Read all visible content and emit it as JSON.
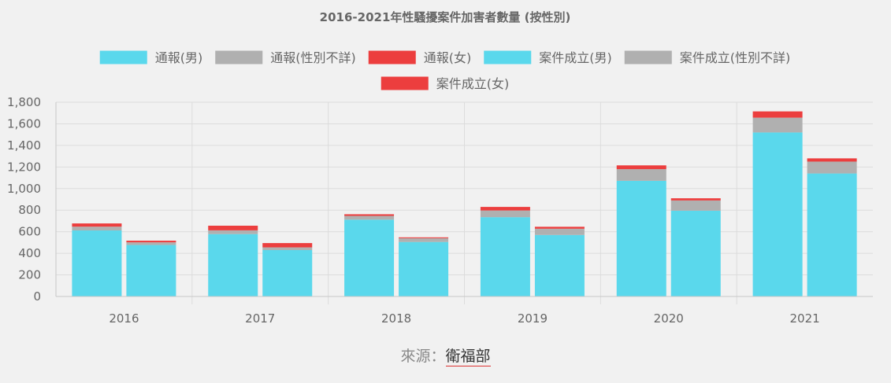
{
  "chart_data": {
    "type": "bar",
    "stacked": true,
    "title": "2016-2021年性騷擾案件加害者數量 (按性別)",
    "categories": [
      "2016",
      "2017",
      "2018",
      "2019",
      "2020",
      "2021"
    ],
    "stacks": [
      "通報",
      "案件成立"
    ],
    "series": [
      {
        "name": "通報(男)",
        "stack": "通報",
        "color": "#5ad8ec",
        "values": [
          612,
          578,
          712,
          735,
          1072,
          1520
        ]
      },
      {
        "name": "通報(性別不詳)",
        "stack": "通報",
        "color": "#b0b0b0",
        "values": [
          35,
          35,
          35,
          62,
          108,
          137
        ]
      },
      {
        "name": "通報(女)",
        "stack": "通報",
        "color": "#ec3e3e",
        "values": [
          30,
          43,
          15,
          33,
          35,
          58
        ]
      },
      {
        "name": "案件成立(男)",
        "stack": "案件成立",
        "color": "#5ad8ec",
        "values": [
          477,
          430,
          505,
          570,
          795,
          1140
        ]
      },
      {
        "name": "案件成立(性別不詳)",
        "stack": "案件成立",
        "color": "#b0b0b0",
        "values": [
          25,
          25,
          35,
          58,
          95,
          110
        ]
      },
      {
        "name": "案件成立(女)",
        "stack": "案件成立",
        "color": "#ec3e3e",
        "values": [
          15,
          40,
          8,
          18,
          20,
          30
        ]
      }
    ],
    "ylim": [
      0,
      1800
    ],
    "yticks": [
      0,
      200,
      400,
      600,
      800,
      1000,
      1200,
      1400,
      1600,
      1800
    ],
    "ytick_labels": [
      "0",
      "200",
      "400",
      "600",
      "800",
      "1,000",
      "1,200",
      "1,400",
      "1,600",
      "1,800"
    ],
    "grid": true,
    "legend_position": "top"
  },
  "source": {
    "label": "來源：",
    "link_text": "衛福部"
  }
}
